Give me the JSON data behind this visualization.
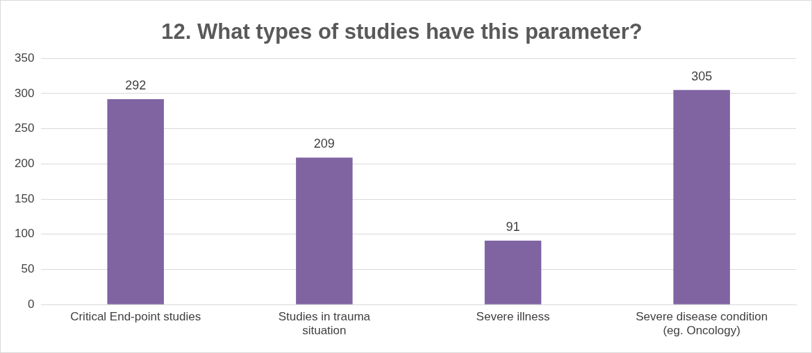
{
  "chart_data": {
    "type": "bar",
    "title": "12. What types of studies have this parameter?",
    "categories": [
      "Critical End-point studies",
      "Studies in trauma situation",
      "Severe illness",
      "Severe disease condition (eg. Oncology)"
    ],
    "values": [
      292,
      209,
      91,
      305
    ],
    "color": "#8064a2",
    "ylim": [
      0,
      350
    ],
    "yticks": [
      0,
      50,
      100,
      150,
      200,
      250,
      300,
      350
    ],
    "grid": "y",
    "data_labels": true,
    "legend": false
  }
}
